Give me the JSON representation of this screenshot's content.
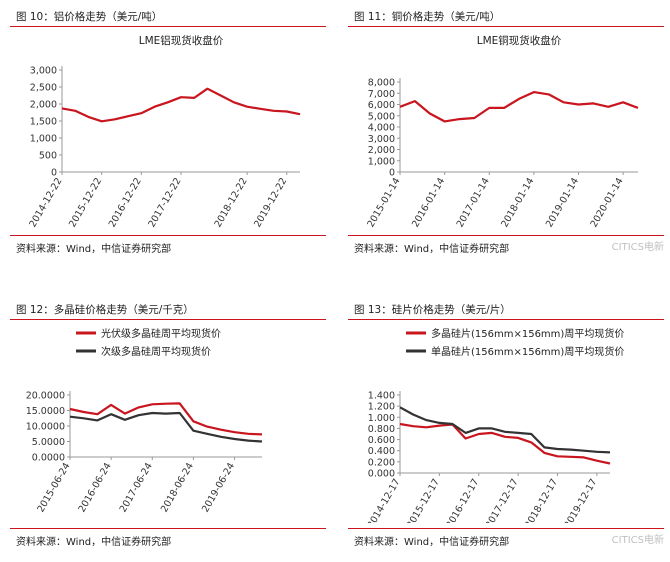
{
  "figures": [
    {
      "caption": "图 10：铝价格走势（美元/吨）",
      "source": "资料来源：Wind，中信证券研究部",
      "watermark": "",
      "colors": [
        "#c9151e"
      ],
      "chart_data": {
        "type": "line",
        "title": "LME铝现货收盘价",
        "xlabel": "",
        "ylabel": "",
        "x": [
          "2014-12-22",
          "2015-04-22",
          "2015-08-22",
          "2015-12-22",
          "2016-04-22",
          "2016-08-22",
          "2016-12-22",
          "2017-04-22",
          "2017-08-22",
          "2017-12-22",
          "2018-02-22",
          "2018-04-22",
          "2018-06-22",
          "2018-08-22",
          "2018-12-22",
          "2019-04-22",
          "2019-08-22",
          "2019-12-22",
          "2020-02-22"
        ],
        "x_ticks": [
          "2014-12-22",
          "2015-12-22",
          "2016-12-22",
          "2017-12-22",
          "2018-12-22",
          "2019-12-22"
        ],
        "y_ticks": [
          "0",
          "500",
          "1,000",
          "1,500",
          "2,000",
          "2,500",
          "3,000"
        ],
        "ylim": [
          0,
          3000
        ],
        "series": [
          {
            "name": "",
            "values": [
              1870,
              1800,
              1620,
              1490,
              1550,
              1640,
              1730,
              1920,
              2050,
              2200,
              2180,
              2450,
              2250,
              2050,
              1920,
              1860,
              1800,
              1780,
              1700
            ]
          }
        ],
        "grid": false,
        "legend": "none"
      }
    },
    {
      "caption": "图 11：铜价格走势（美元/吨）",
      "source": "资料来源：Wind，中信证券研究部",
      "watermark": "CITICS电新",
      "colors": [
        "#c9151e"
      ],
      "chart_data": {
        "type": "line",
        "title": "LME铜现货收盘价",
        "xlabel": "",
        "ylabel": "",
        "x": [
          "2015-01-14",
          "2015-05-14",
          "2015-09-14",
          "2016-01-14",
          "2016-05-14",
          "2016-09-14",
          "2017-01-14",
          "2017-05-14",
          "2017-09-14",
          "2018-01-14",
          "2018-05-14",
          "2018-09-14",
          "2019-01-14",
          "2019-05-14",
          "2019-09-14",
          "2020-01-14",
          "2020-03-14"
        ],
        "x_ticks": [
          "2015-01-14",
          "2016-01-14",
          "2017-01-14",
          "2018-01-14",
          "2019-01-14",
          "2020-01-14"
        ],
        "y_ticks": [
          "0",
          "1,000",
          "2,000",
          "3,000",
          "4,000",
          "5,000",
          "6,000",
          "7,000",
          "8,000"
        ],
        "ylim": [
          0,
          8000
        ],
        "series": [
          {
            "name": "",
            "values": [
              5800,
              6300,
              5200,
              4500,
              4700,
              4800,
              5700,
              5700,
              6500,
              7100,
              6900,
              6200,
              6000,
              6100,
              5800,
              6200,
              5700
            ]
          }
        ],
        "grid": false,
        "legend": "none"
      }
    },
    {
      "caption": "图 12：多晶硅价格走势（美元/千克）",
      "source": "资料来源：Wind，中信证券研究部",
      "watermark": "",
      "colors": [
        "#c9151e",
        "#333333"
      ],
      "chart_data": {
        "type": "line",
        "title": "",
        "xlabel": "",
        "ylabel": "",
        "x": [
          "2015-06-24",
          "2015-10-24",
          "2016-02-24",
          "2016-06-24",
          "2016-10-24",
          "2017-02-24",
          "2017-06-24",
          "2017-10-24",
          "2018-02-24",
          "2018-06-24",
          "2018-10-24",
          "2019-02-24",
          "2019-06-24",
          "2019-10-24",
          "2020-02-24"
        ],
        "x_ticks": [
          "2015-06-24",
          "2016-06-24",
          "2017-06-24",
          "2018-06-24",
          "2019-06-24"
        ],
        "y_ticks": [
          "0.0000",
          "5.0000",
          "10.0000",
          "15.0000",
          "20.0000"
        ],
        "ylim": [
          0,
          20
        ],
        "series": [
          {
            "name": "光伏级多晶硅周平均现货价",
            "values": [
              15.5,
              14.5,
              13.8,
              16.8,
              14.0,
              16.0,
              17.0,
              17.2,
              17.3,
              11.5,
              9.8,
              8.8,
              8.0,
              7.5,
              7.3
            ]
          },
          {
            "name": "次级多晶硅周平均现货价",
            "values": [
              13.0,
              12.5,
              11.8,
              13.8,
              12.0,
              13.5,
              14.2,
              14.0,
              14.2,
              8.5,
              7.5,
              6.5,
              5.8,
              5.3,
              5.0
            ]
          }
        ],
        "grid": false,
        "legend": "top-left"
      }
    },
    {
      "caption": "图 13：硅片价格走势（美元/片）",
      "source": "资料来源：Wind，中信证券研究部",
      "watermark": "CITICS电新",
      "colors": [
        "#c9151e",
        "#333333"
      ],
      "chart_data": {
        "type": "line",
        "title": "",
        "xlabel": "",
        "ylabel": "",
        "x": [
          "2014-12-17",
          "2015-04-17",
          "2015-08-17",
          "2015-12-17",
          "2016-04-17",
          "2016-08-17",
          "2016-12-17",
          "2017-04-17",
          "2017-08-17",
          "2017-12-17",
          "2018-04-17",
          "2018-08-17",
          "2018-12-17",
          "2019-04-17",
          "2019-08-17",
          "2019-12-17",
          "2020-04-17"
        ],
        "x_ticks": [
          "2014-12-17",
          "2015-12-17",
          "2016-12-17",
          "2017-12-17",
          "2018-12-17",
          "2019-12-17"
        ],
        "y_ticks": [
          "0.000",
          "0.200",
          "0.400",
          "0.600",
          "0.800",
          "1.000",
          "1.200",
          "1.400"
        ],
        "ylim": [
          0,
          1.4
        ],
        "series": [
          {
            "name": "多晶硅片(156mm×156mm)周平均现货价",
            "values": [
              0.88,
              0.84,
              0.82,
              0.85,
              0.87,
              0.62,
              0.7,
              0.72,
              0.65,
              0.63,
              0.55,
              0.36,
              0.3,
              0.29,
              0.28,
              0.22,
              0.17
            ]
          },
          {
            "name": "单晶硅片(156mm×156mm)周平均现货价",
            "values": [
              1.18,
              1.05,
              0.95,
              0.9,
              0.88,
              0.72,
              0.8,
              0.8,
              0.74,
              0.72,
              0.7,
              0.46,
              0.43,
              0.42,
              0.4,
              0.38,
              0.37
            ]
          }
        ],
        "grid": false,
        "legend": "top-left"
      }
    }
  ]
}
